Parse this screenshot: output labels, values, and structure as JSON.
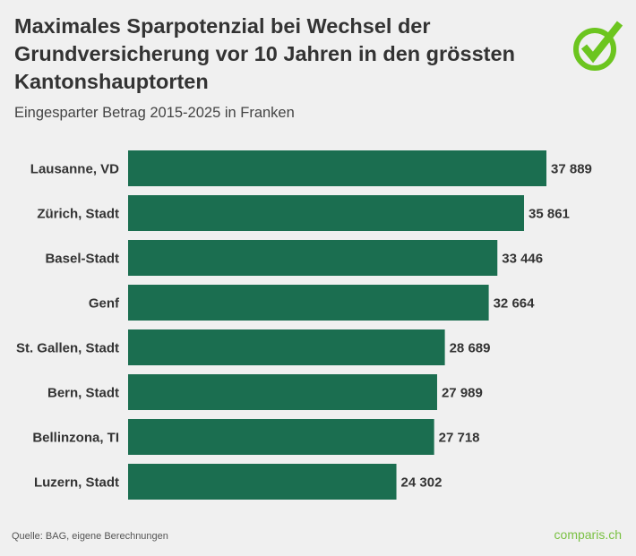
{
  "title": "Maximales Sparpotenzial bei Wechsel der Grundversicherung vor 10 Jahren in den grössten Kantonshauptorten",
  "subtitle": "Eingesparter Betrag 2015-2025 in Franken",
  "source": "Quelle: BAG, eigene Berechnungen",
  "brand": "comparis.ch",
  "logo_icon": "checkmark-circle-icon",
  "colors": {
    "bar": "#1b6e50",
    "logo": "#6cc51f",
    "text": "#333333",
    "background": "#f0f0f0"
  },
  "chart_data": {
    "type": "bar",
    "orientation": "horizontal",
    "categories": [
      "Lausanne, VD",
      "Zürich, Stadt",
      "Basel-Stadt",
      "Genf",
      "St. Gallen, Stadt",
      "Bern, Stadt",
      "Bellinzona, TI",
      "Luzern, Stadt"
    ],
    "values": [
      37889,
      35861,
      33446,
      32664,
      28689,
      27989,
      27718,
      24302
    ],
    "value_labels": [
      "37 889",
      "35 861",
      "33 446",
      "32 664",
      "28 689",
      "27 989",
      "27 718",
      "24 302"
    ],
    "grid": false
  }
}
